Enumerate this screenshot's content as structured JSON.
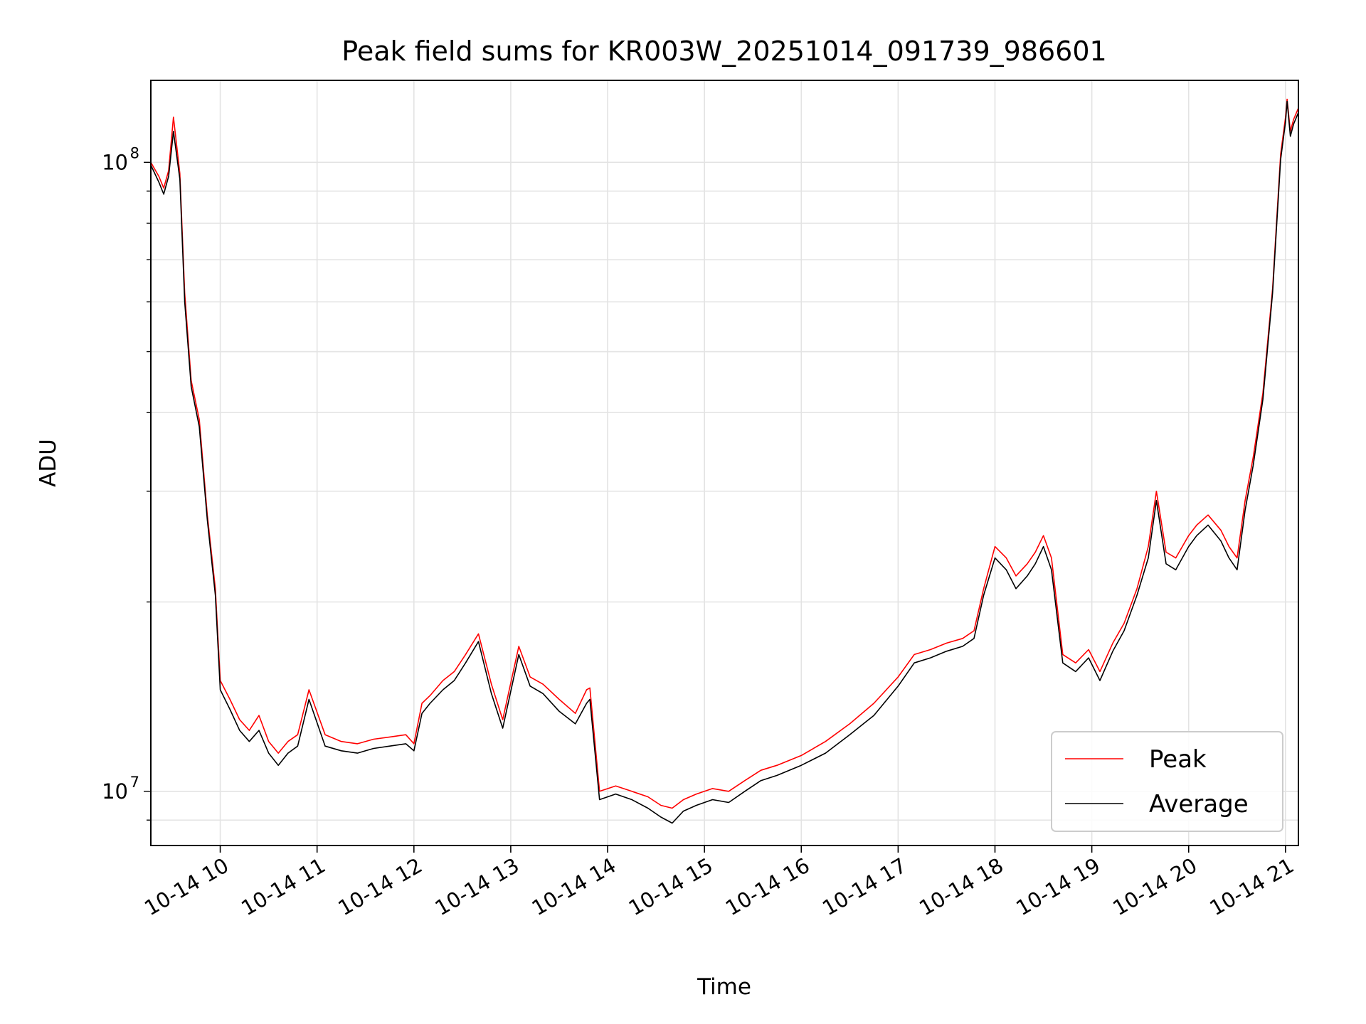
{
  "chart_data": {
    "type": "line",
    "title": "Peak field sums for KR003W_20251014_091739_986601",
    "xlabel": "Time",
    "ylabel": "ADU",
    "yscale": "log",
    "ylim": [
      8200000,
      135000000
    ],
    "xlim": [
      "2025-10-14 09:17",
      "2025-10-14 21:08"
    ],
    "x_ticks": [
      {
        "t": "2025-10-14 10:00",
        "label": "10-14 10"
      },
      {
        "t": "2025-10-14 11:00",
        "label": "10-14 11"
      },
      {
        "t": "2025-10-14 12:00",
        "label": "10-14 12"
      },
      {
        "t": "2025-10-14 13:00",
        "label": "10-14 13"
      },
      {
        "t": "2025-10-14 14:00",
        "label": "10-14 14"
      },
      {
        "t": "2025-10-14 15:00",
        "label": "10-14 15"
      },
      {
        "t": "2025-10-14 16:00",
        "label": "10-14 16"
      },
      {
        "t": "2025-10-14 17:00",
        "label": "10-14 17"
      },
      {
        "t": "2025-10-14 18:00",
        "label": "10-14 18"
      },
      {
        "t": "2025-10-14 19:00",
        "label": "10-14 19"
      },
      {
        "t": "2025-10-14 20:00",
        "label": "10-14 20"
      },
      {
        "t": "2025-10-14 21:00",
        "label": "10-14 21"
      }
    ],
    "y_ticks": [
      {
        "value": 10000000,
        "base": "10",
        "exp": "7"
      },
      {
        "value": 100000000,
        "base": "10",
        "exp": "8"
      }
    ],
    "grid": true,
    "legend_position": "lower-right",
    "series": [
      {
        "name": "Peak",
        "color": "#ff0000",
        "x": [
          "2025-10-14 09:17",
          "2025-10-14 09:22",
          "2025-10-14 09:25",
          "2025-10-14 09:28",
          "2025-10-14 09:31",
          "2025-10-14 09:35",
          "2025-10-14 09:38",
          "2025-10-14 09:42",
          "2025-10-14 09:47",
          "2025-10-14 09:52",
          "2025-10-14 09:57",
          "2025-10-14 10:00",
          "2025-10-14 10:06",
          "2025-10-14 10:12",
          "2025-10-14 10:18",
          "2025-10-14 10:24",
          "2025-10-14 10:30",
          "2025-10-14 10:36",
          "2025-10-14 10:42",
          "2025-10-14 10:48",
          "2025-10-14 10:55",
          "2025-10-14 11:05",
          "2025-10-14 11:15",
          "2025-10-14 11:25",
          "2025-10-14 11:35",
          "2025-10-14 11:45",
          "2025-10-14 11:55",
          "2025-10-14 12:00",
          "2025-10-14 12:05",
          "2025-10-14 12:10",
          "2025-10-14 12:18",
          "2025-10-14 12:25",
          "2025-10-14 12:32",
          "2025-10-14 12:40",
          "2025-10-14 12:48",
          "2025-10-14 12:55",
          "2025-10-14 13:05",
          "2025-10-14 13:12",
          "2025-10-14 13:20",
          "2025-10-14 13:30",
          "2025-10-14 13:40",
          "2025-10-14 13:47",
          "2025-10-14 13:49",
          "2025-10-14 13:55",
          "2025-10-14 14:05",
          "2025-10-14 14:15",
          "2025-10-14 14:25",
          "2025-10-14 14:33",
          "2025-10-14 14:40",
          "2025-10-14 14:47",
          "2025-10-14 14:55",
          "2025-10-14 15:05",
          "2025-10-14 15:15",
          "2025-10-14 15:25",
          "2025-10-14 15:35",
          "2025-10-14 15:45",
          "2025-10-14 16:00",
          "2025-10-14 16:15",
          "2025-10-14 16:30",
          "2025-10-14 16:45",
          "2025-10-14 17:00",
          "2025-10-14 17:10",
          "2025-10-14 17:20",
          "2025-10-14 17:30",
          "2025-10-14 17:40",
          "2025-10-14 17:47",
          "2025-10-14 17:53",
          "2025-10-14 18:00",
          "2025-10-14 18:07",
          "2025-10-14 18:13",
          "2025-10-14 18:20",
          "2025-10-14 18:25",
          "2025-10-14 18:30",
          "2025-10-14 18:35",
          "2025-10-14 18:42",
          "2025-10-14 18:50",
          "2025-10-14 18:58",
          "2025-10-14 19:05",
          "2025-10-14 19:13",
          "2025-10-14 19:20",
          "2025-10-14 19:28",
          "2025-10-14 19:35",
          "2025-10-14 19:40",
          "2025-10-14 19:46",
          "2025-10-14 19:52",
          "2025-10-14 20:00",
          "2025-10-14 20:05",
          "2025-10-14 20:12",
          "2025-10-14 20:20",
          "2025-10-14 20:25",
          "2025-10-14 20:30",
          "2025-10-14 20:35",
          "2025-10-14 20:40",
          "2025-10-14 20:46",
          "2025-10-14 20:52",
          "2025-10-14 20:57",
          "2025-10-14 21:00",
          "2025-10-14 21:01",
          "2025-10-14 21:03",
          "2025-10-14 21:05",
          "2025-10-14 21:08"
        ],
        "values": [
          100000000,
          95000000,
          91000000,
          97000000,
          118000000,
          96000000,
          62000000,
          45000000,
          39000000,
          27500000,
          21000000,
          15000000,
          14000000,
          13000000,
          12500000,
          13200000,
          12000000,
          11500000,
          12000000,
          12300000,
          14500000,
          12300000,
          12000000,
          11900000,
          12100000,
          12200000,
          12300000,
          11900000,
          13800000,
          14200000,
          15000000,
          15500000,
          16500000,
          17800000,
          14800000,
          13000000,
          17000000,
          15200000,
          14800000,
          14000000,
          13300000,
          14500000,
          14600000,
          10000000,
          10200000,
          10000000,
          9800000,
          9500000,
          9400000,
          9700000,
          9900000,
          10100000,
          10000000,
          10400000,
          10800000,
          11000000,
          11400000,
          12000000,
          12800000,
          13800000,
          15200000,
          16500000,
          16800000,
          17200000,
          17500000,
          18000000,
          21000000,
          24500000,
          23500000,
          22000000,
          23000000,
          24000000,
          25500000,
          23500000,
          16500000,
          16000000,
          16800000,
          15500000,
          17200000,
          18500000,
          21000000,
          24500000,
          30000000,
          24000000,
          23500000,
          25500000,
          26500000,
          27500000,
          26000000,
          24500000,
          23500000,
          29000000,
          34000000,
          43000000,
          63000000,
          103000000,
          118000000,
          126000000,
          112000000,
          117000000,
          122000000
        ]
      },
      {
        "name": "Average",
        "color": "#000000",
        "x": [
          "2025-10-14 09:17",
          "2025-10-14 09:22",
          "2025-10-14 09:25",
          "2025-10-14 09:28",
          "2025-10-14 09:31",
          "2025-10-14 09:35",
          "2025-10-14 09:38",
          "2025-10-14 09:42",
          "2025-10-14 09:47",
          "2025-10-14 09:52",
          "2025-10-14 09:57",
          "2025-10-14 10:00",
          "2025-10-14 10:06",
          "2025-10-14 10:12",
          "2025-10-14 10:18",
          "2025-10-14 10:24",
          "2025-10-14 10:30",
          "2025-10-14 10:36",
          "2025-10-14 10:42",
          "2025-10-14 10:48",
          "2025-10-14 10:55",
          "2025-10-14 11:05",
          "2025-10-14 11:15",
          "2025-10-14 11:25",
          "2025-10-14 11:35",
          "2025-10-14 11:45",
          "2025-10-14 11:55",
          "2025-10-14 12:00",
          "2025-10-14 12:05",
          "2025-10-14 12:10",
          "2025-10-14 12:18",
          "2025-10-14 12:25",
          "2025-10-14 12:32",
          "2025-10-14 12:40",
          "2025-10-14 12:48",
          "2025-10-14 12:55",
          "2025-10-14 13:05",
          "2025-10-14 13:12",
          "2025-10-14 13:20",
          "2025-10-14 13:30",
          "2025-10-14 13:40",
          "2025-10-14 13:47",
          "2025-10-14 13:49",
          "2025-10-14 13:55",
          "2025-10-14 14:05",
          "2025-10-14 14:15",
          "2025-10-14 14:25",
          "2025-10-14 14:33",
          "2025-10-14 14:40",
          "2025-10-14 14:47",
          "2025-10-14 14:55",
          "2025-10-14 15:05",
          "2025-10-14 15:15",
          "2025-10-14 15:25",
          "2025-10-14 15:35",
          "2025-10-14 15:45",
          "2025-10-14 16:00",
          "2025-10-14 16:15",
          "2025-10-14 16:30",
          "2025-10-14 16:45",
          "2025-10-14 17:00",
          "2025-10-14 17:10",
          "2025-10-14 17:20",
          "2025-10-14 17:30",
          "2025-10-14 17:40",
          "2025-10-14 17:47",
          "2025-10-14 17:53",
          "2025-10-14 18:00",
          "2025-10-14 18:07",
          "2025-10-14 18:13",
          "2025-10-14 18:20",
          "2025-10-14 18:25",
          "2025-10-14 18:30",
          "2025-10-14 18:35",
          "2025-10-14 18:42",
          "2025-10-14 18:50",
          "2025-10-14 18:58",
          "2025-10-14 19:05",
          "2025-10-14 19:13",
          "2025-10-14 19:20",
          "2025-10-14 19:28",
          "2025-10-14 19:35",
          "2025-10-14 19:40",
          "2025-10-14 19:46",
          "2025-10-14 19:52",
          "2025-10-14 20:00",
          "2025-10-14 20:05",
          "2025-10-14 20:12",
          "2025-10-14 20:20",
          "2025-10-14 20:25",
          "2025-10-14 20:30",
          "2025-10-14 20:35",
          "2025-10-14 20:40",
          "2025-10-14 20:46",
          "2025-10-14 20:52",
          "2025-10-14 20:57",
          "2025-10-14 21:00",
          "2025-10-14 21:01",
          "2025-10-14 21:03",
          "2025-10-14 21:05",
          "2025-10-14 21:08"
        ],
        "values": [
          99000000,
          93000000,
          89000000,
          95000000,
          112000000,
          94000000,
          60000000,
          44000000,
          38000000,
          27000000,
          20500000,
          14500000,
          13500000,
          12500000,
          12000000,
          12500000,
          11500000,
          11000000,
          11500000,
          11800000,
          14000000,
          11800000,
          11600000,
          11500000,
          11700000,
          11800000,
          11900000,
          11600000,
          13300000,
          13800000,
          14500000,
          15000000,
          16000000,
          17300000,
          14300000,
          12600000,
          16500000,
          14700000,
          14300000,
          13400000,
          12800000,
          13800000,
          14000000,
          9700000,
          9900000,
          9700000,
          9400000,
          9100000,
          8900000,
          9300000,
          9500000,
          9700000,
          9600000,
          10000000,
          10400000,
          10600000,
          11000000,
          11500000,
          12300000,
          13200000,
          14700000,
          16000000,
          16300000,
          16700000,
          17000000,
          17500000,
          20500000,
          23500000,
          22500000,
          21000000,
          22000000,
          23000000,
          24500000,
          22500000,
          16000000,
          15500000,
          16300000,
          15000000,
          16700000,
          18000000,
          20500000,
          23500000,
          29000000,
          23000000,
          22500000,
          24500000,
          25500000,
          26500000,
          25000000,
          23500000,
          22500000,
          28000000,
          33000000,
          42000000,
          62000000,
          101000000,
          116000000,
          125000000,
          110000000,
          115000000,
          120000000
        ]
      }
    ]
  }
}
